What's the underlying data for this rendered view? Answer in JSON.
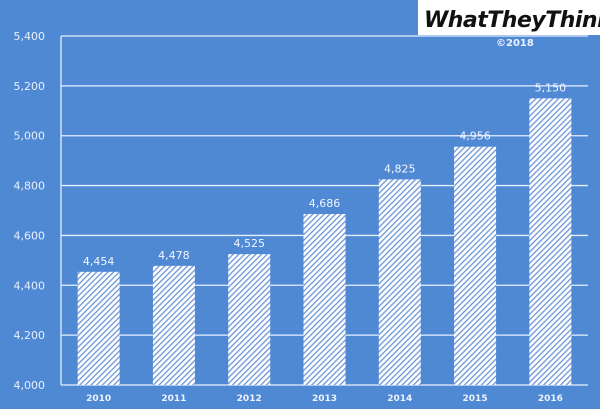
{
  "branding": {
    "logo_text": "WhatTheyThink",
    "logo_mark": "?",
    "copyright": "©2018"
  },
  "colors": {
    "background": "#4f88d3",
    "bar_fill": "#ffffff",
    "bar_hatch": "#6d95d6",
    "grid": "#e6efff"
  },
  "chart_data": {
    "type": "bar",
    "categories": [
      "2010",
      "2011",
      "2012",
      "2013",
      "2014",
      "2015",
      "2016"
    ],
    "values": [
      4454,
      4478,
      4525,
      4686,
      4825,
      4956,
      5150
    ],
    "data_labels": [
      "4,454",
      "4,478",
      "4,525",
      "4,686",
      "4,825",
      "4,956",
      "5,150"
    ],
    "title": "",
    "xlabel": "",
    "ylabel": "",
    "ylim": [
      4000,
      5400
    ],
    "yticks": [
      "4,000",
      "4,200",
      "4,400",
      "4,600",
      "4,800",
      "5,000",
      "5,200",
      "5,400"
    ],
    "grid": true,
    "bar_pattern": "hatched"
  }
}
